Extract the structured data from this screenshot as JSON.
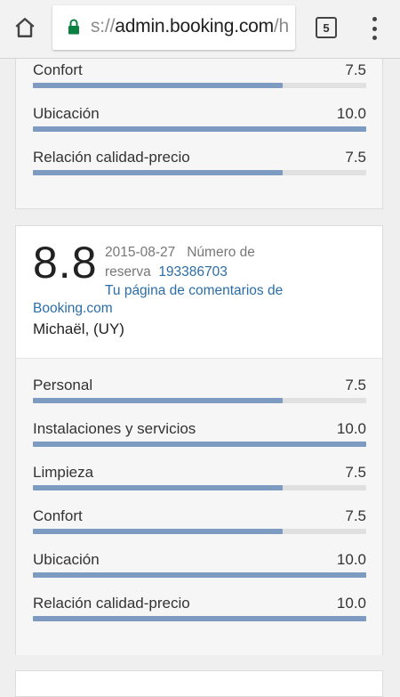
{
  "browser": {
    "url_prefix": "s://",
    "url_host": "admin.booking.com",
    "url_rest": "/h",
    "tab_count": "5",
    "icons": {
      "home": "home-icon",
      "lock": "lock-icon",
      "menu": "more-vert-icon"
    },
    "colors": {
      "lock": "#0b8043"
    }
  },
  "review_prev": {
    "ratings": [
      {
        "label": "Confort",
        "value": "7.5",
        "fill": 0.75
      },
      {
        "label": "Ubicación",
        "value": "10.0",
        "fill": 1.0
      },
      {
        "label": "Relación calidad-precio",
        "value": "7.5",
        "fill": 0.75
      }
    ]
  },
  "review": {
    "score": "8.8",
    "date": "2015-08-27",
    "reservation_label": "Número de reserva",
    "reservation_number": "193386703",
    "comments_link_part1": "Tu página de comentarios de",
    "comments_link_part2": "Booking.com",
    "guest": "Michaël, (UY)",
    "ratings": [
      {
        "label": "Personal",
        "value": "7.5",
        "fill": 0.75
      },
      {
        "label": "Instalaciones y servicios",
        "value": "10.0",
        "fill": 1.0
      },
      {
        "label": "Limpieza",
        "value": "7.5",
        "fill": 0.75
      },
      {
        "label": "Confort",
        "value": "7.5",
        "fill": 0.75
      },
      {
        "label": "Ubicación",
        "value": "10.0",
        "fill": 1.0
      },
      {
        "label": "Relación calidad-precio",
        "value": "10.0",
        "fill": 1.0
      }
    ]
  },
  "colors": {
    "bar_fill": "#7d9bc1",
    "bar_track": "#e0e0e0",
    "link": "#2b6da6"
  }
}
